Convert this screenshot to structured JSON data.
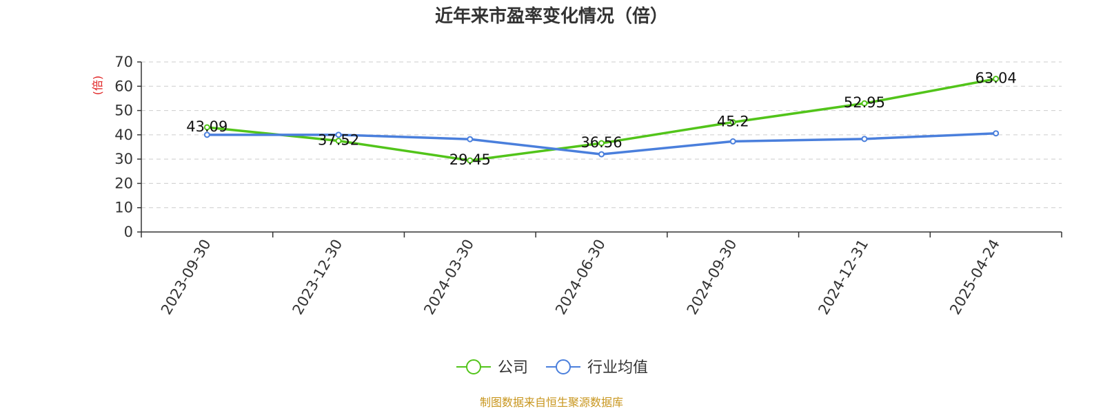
{
  "chart_data": {
    "type": "line",
    "title": "近年来市盈率变化情况（倍）",
    "ylabel": "(倍)",
    "ylim": [
      0,
      70
    ],
    "yticks": [
      0,
      10,
      20,
      30,
      40,
      50,
      60,
      70
    ],
    "categories": [
      "2023-09-30",
      "2023-12-30",
      "2024-03-30",
      "2024-06-30",
      "2024-09-30",
      "2024-12-31",
      "2025-04-24"
    ],
    "series": [
      {
        "name": "公司",
        "color": "#52c41a",
        "values": [
          43.09,
          37.52,
          29.45,
          36.56,
          45.2,
          52.95,
          63.04
        ],
        "labels": [
          "43.09",
          "37.52",
          "29.45",
          "36.56",
          "45.2",
          "52.95",
          "63.04"
        ]
      },
      {
        "name": "行业均值",
        "color": "#4a7fdc",
        "values": [
          40.0,
          40.0,
          38.2,
          32.0,
          37.3,
          38.3,
          40.6
        ]
      }
    ],
    "grid": "horizontal-dashed",
    "legend": "bottom-center"
  },
  "footer": {
    "source": "制图数据来自恒生聚源数据库",
    "source_color": "#c8961e"
  },
  "ylabel_color": "#e02020"
}
